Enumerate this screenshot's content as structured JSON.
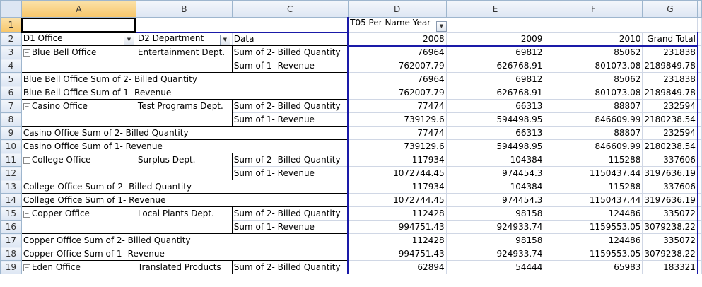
{
  "columns": [
    "A",
    "B",
    "C",
    "D",
    "E",
    "F",
    "G"
  ],
  "header_row1": {
    "col_field": "T05 Per Name Year"
  },
  "header_row2": {
    "row_field1": "D1  Office",
    "row_field2": "D2  Department",
    "data_field": "Data",
    "years": [
      "2008",
      "2009",
      "2010"
    ],
    "grand_total": "Grand Total"
  },
  "rows": [
    {
      "num": "3",
      "office": "Blue Bell Office",
      "dept": "Entertainment Dept.",
      "label": "Sum of 2- Billed Quantity",
      "values": [
        "76964",
        "69812",
        "85062",
        "231838"
      ]
    },
    {
      "num": "4",
      "label": "Sum of 1- Revenue",
      "values": [
        "762007.79",
        "626768.91",
        "801073.08",
        "2189849.78"
      ]
    },
    {
      "num": "5",
      "subtotal": "Blue Bell Office Sum of 2- Billed Quantity",
      "values": [
        "76964",
        "69812",
        "85062",
        "231838"
      ]
    },
    {
      "num": "6",
      "subtotal": "Blue Bell Office Sum of 1- Revenue",
      "values": [
        "762007.79",
        "626768.91",
        "801073.08",
        "2189849.78"
      ]
    },
    {
      "num": "7",
      "office": "Casino Office",
      "dept": "Test Programs Dept.",
      "label": "Sum of 2- Billed Quantity",
      "values": [
        "77474",
        "66313",
        "88807",
        "232594"
      ]
    },
    {
      "num": "8",
      "label": "Sum of 1- Revenue",
      "values": [
        "739129.6",
        "594498.95",
        "846609.99",
        "2180238.54"
      ]
    },
    {
      "num": "9",
      "subtotal": "Casino Office Sum of 2- Billed Quantity",
      "values": [
        "77474",
        "66313",
        "88807",
        "232594"
      ]
    },
    {
      "num": "10",
      "subtotal": "Casino Office Sum of 1- Revenue",
      "values": [
        "739129.6",
        "594498.95",
        "846609.99",
        "2180238.54"
      ]
    },
    {
      "num": "11",
      "office": "College Office",
      "dept": "Surplus Dept.",
      "label": "Sum of 2- Billed Quantity",
      "values": [
        "117934",
        "104384",
        "115288",
        "337606"
      ]
    },
    {
      "num": "12",
      "label": "Sum of 1- Revenue",
      "values": [
        "1072744.45",
        "974454.3",
        "1150437.44",
        "3197636.19"
      ]
    },
    {
      "num": "13",
      "subtotal": "College Office Sum of 2- Billed Quantity",
      "values": [
        "117934",
        "104384",
        "115288",
        "337606"
      ]
    },
    {
      "num": "14",
      "subtotal": "College Office Sum of 1- Revenue",
      "values": [
        "1072744.45",
        "974454.3",
        "1150437.44",
        "3197636.19"
      ]
    },
    {
      "num": "15",
      "office": "Copper Office",
      "dept": "Local Plants Dept.",
      "label": "Sum of 2- Billed Quantity",
      "values": [
        "112428",
        "98158",
        "124486",
        "335072"
      ]
    },
    {
      "num": "16",
      "label": "Sum of 1- Revenue",
      "values": [
        "994751.43",
        "924933.74",
        "1159553.05",
        "3079238.22"
      ]
    },
    {
      "num": "17",
      "subtotal": "Copper Office Sum of 2- Billed Quantity",
      "values": [
        "112428",
        "98158",
        "124486",
        "335072"
      ]
    },
    {
      "num": "18",
      "subtotal": "Copper Office Sum of 1- Revenue",
      "values": [
        "994751.43",
        "924933.74",
        "1159553.05",
        "3079238.22"
      ]
    },
    {
      "num": "19",
      "office": "Eden Office",
      "dept": "Translated Products",
      "label": "Sum of 2- Billed Quantity",
      "values": [
        "62894",
        "54444",
        "65983",
        "183321"
      ]
    }
  ]
}
